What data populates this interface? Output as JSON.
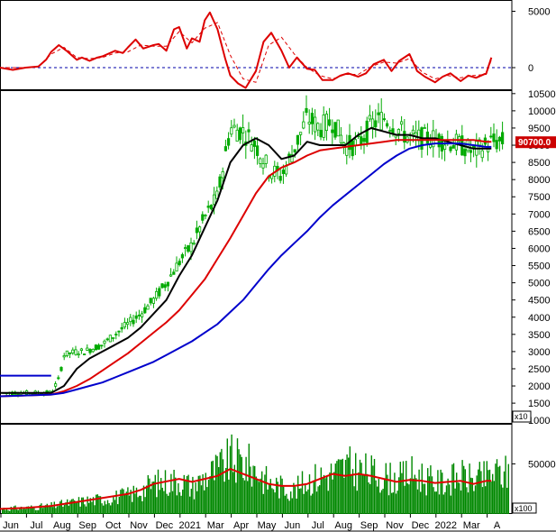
{
  "chart_data": [
    {
      "type": "line",
      "panel": "oscillator",
      "ylim": [
        -2000,
        6000
      ],
      "yticks": [
        "5000",
        "0"
      ],
      "zero_line": true,
      "colors": {
        "line": "#dd0000",
        "signal": "#dd0000",
        "zero": "#0000aa"
      },
      "series": [
        {
          "style": "solid",
          "x": [
            0,
            0.5,
            1,
            1.5,
            1.8,
            2,
            2.3,
            2.6,
            3,
            3.2,
            3.5,
            3.8,
            4,
            4.3,
            4.5,
            4.8,
            5,
            5.3,
            5.6,
            6,
            6.2,
            6.5,
            6.8,
            7,
            7.3,
            7.5,
            7.8,
            8,
            8.2,
            8.5,
            8.8,
            9,
            9.3,
            9.6,
            10,
            10.3,
            10.6,
            11,
            11.3,
            11.6,
            12,
            12.3,
            12.6,
            13,
            13.3,
            13.6,
            14,
            14.3,
            14.6,
            15,
            15.3,
            15.6,
            16,
            16.3,
            16.6,
            17,
            17.3,
            17.6,
            18,
            18.3,
            18.6,
            19,
            19.2
          ],
          "y": [
            0,
            -200,
            0,
            100,
            700,
            1400,
            2000,
            1500,
            700,
            900,
            600,
            900,
            1000,
            1300,
            1500,
            1300,
            1800,
            2500,
            1700,
            2000,
            2100,
            1500,
            3400,
            3600,
            1700,
            2600,
            2300,
            4200,
            4900,
            3400,
            800,
            -700,
            -1400,
            -1800,
            -300,
            2300,
            3100,
            1500,
            0,
            900,
            -100,
            -200,
            -1100,
            -1100,
            -700,
            -500,
            -800,
            -500,
            300,
            700,
            -300,
            600,
            1200,
            -300,
            -800,
            -1300,
            -800,
            -500,
            -1200,
            -700,
            -900,
            -500,
            900
          ]
        },
        {
          "style": "dashed",
          "x": [
            0,
            1,
            1.5,
            2,
            2.5,
            3,
            3.5,
            4,
            4.5,
            5,
            5.5,
            6,
            6.5,
            7,
            7.5,
            8,
            8.5,
            9,
            9.5,
            10,
            10.5,
            11,
            11.5,
            12,
            12.5,
            13,
            13.5,
            14,
            14.5,
            15,
            15.5,
            16,
            16.5,
            17,
            17.5,
            18,
            18.5,
            19,
            19.2
          ],
          "y": [
            0,
            0,
            100,
            1200,
            1800,
            900,
            800,
            900,
            1300,
            1400,
            2000,
            1900,
            1900,
            3200,
            2200,
            3500,
            4000,
            1100,
            -1000,
            -1300,
            2000,
            2700,
            1200,
            0,
            -700,
            -1000,
            -600,
            -600,
            100,
            500,
            400,
            800,
            -400,
            -1000,
            -700,
            -900,
            -700,
            -600,
            700
          ]
        }
      ]
    },
    {
      "type": "candlestick",
      "panel": "price",
      "ylim": [
        900,
        10600
      ],
      "yticks": [
        "10500",
        "10000",
        "9500",
        "9000",
        "8500",
        "8000",
        "7500",
        "7000",
        "6500",
        "6000",
        "5500",
        "5000",
        "4500",
        "4000",
        "3500",
        "3000",
        "2500",
        "2000",
        "1500",
        "1000"
      ],
      "multiplier": "x10",
      "last_price": "90700.0",
      "colors": {
        "up": "#00aa00",
        "down": "#00aa00",
        "ma_short": "#000000",
        "ma_mid": "#dd0000",
        "ma_long": "#0000cc",
        "price_tag": "#cc0000"
      },
      "price_path": {
        "x": [
          0,
          2,
          2.3,
          2.5,
          3,
          3.3,
          4,
          4.5,
          5,
          5.5,
          6,
          6.5,
          7,
          7.5,
          8,
          8.5,
          9,
          9.5,
          10,
          10.5,
          11,
          11.5,
          12,
          12.5,
          13,
          13.5,
          14,
          14.5,
          15,
          15.5,
          16,
          16.5,
          17,
          17.5,
          18,
          18.5,
          19,
          19.2
        ],
        "y": [
          1800,
          1800,
          2200,
          2900,
          3000,
          3000,
          3200,
          3500,
          3800,
          4100,
          4500,
          5000,
          5600,
          6100,
          6900,
          7500,
          9500,
          9400,
          9000,
          8300,
          8100,
          8900,
          9800,
          9500,
          9700,
          9000,
          9000,
          9600,
          9800,
          9500,
          9200,
          9200,
          9200,
          9100,
          9000,
          8800,
          9000,
          9100
        ]
      },
      "series": [
        {
          "name": "",
          "line": "ma_short",
          "x": [
            0,
            2,
            2.5,
            3,
            3.5,
            4,
            4.5,
            5,
            5.5,
            6,
            6.5,
            7,
            7.5,
            8,
            8.5,
            9,
            9.5,
            10,
            10.5,
            11,
            11.5,
            12,
            12.5,
            13,
            13.5,
            14,
            14.5,
            15,
            15.5,
            16,
            16.5,
            17,
            17.5,
            18,
            18.5,
            19,
            19.2
          ],
          "y": [
            1800,
            1800,
            2000,
            2500,
            2800,
            3000,
            3200,
            3400,
            3700,
            4100,
            4500,
            5200,
            5800,
            6600,
            7400,
            8500,
            9000,
            9200,
            9000,
            8600,
            8700,
            9100,
            9000,
            9000,
            9000,
            9300,
            9500,
            9400,
            9300,
            9300,
            9200,
            9200,
            9100,
            9000,
            8900,
            8900,
            8900
          ]
        },
        {
          "name": "",
          "line": "ma_mid",
          "x": [
            0,
            2,
            2.5,
            3,
            3.5,
            4,
            4.5,
            5,
            5.5,
            6,
            6.5,
            7,
            7.5,
            8,
            8.5,
            9,
            9.5,
            10,
            10.5,
            11,
            11.5,
            12,
            12.5,
            13,
            13.5,
            14,
            14.5,
            15,
            15.5,
            16,
            16.5,
            17,
            17.5,
            18,
            18.5,
            19,
            19.2
          ],
          "y": [
            1700,
            1750,
            1850,
            2000,
            2200,
            2450,
            2700,
            2950,
            3250,
            3550,
            3850,
            4200,
            4650,
            5100,
            5700,
            6300,
            6950,
            7600,
            8100,
            8350,
            8500,
            8700,
            8850,
            8900,
            8950,
            9000,
            9050,
            9100,
            9150,
            9150,
            9150,
            9150,
            9150,
            9150,
            9150,
            9100,
            9100
          ]
        },
        {
          "name": "",
          "line": "ma_long",
          "x": [
            0,
            2,
            2.5,
            3,
            3.5,
            4,
            4.5,
            5,
            5.5,
            6,
            6.5,
            7,
            7.5,
            8,
            8.5,
            9,
            9.5,
            10,
            10.5,
            11,
            11.5,
            12,
            12.5,
            13,
            13.5,
            14,
            14.5,
            15,
            15.5,
            16,
            16.5,
            17,
            17.5,
            18,
            18.5,
            19,
            19.2
          ],
          "y": [
            1700,
            1750,
            1800,
            1900,
            2000,
            2100,
            2250,
            2400,
            2550,
            2700,
            2900,
            3100,
            3300,
            3550,
            3800,
            4150,
            4500,
            4950,
            5400,
            5800,
            6150,
            6500,
            6900,
            7250,
            7550,
            7850,
            8150,
            8450,
            8700,
            8900,
            9000,
            9050,
            9050,
            9050,
            9000,
            8950,
            8950
          ]
        },
        {
          "name": "",
          "line": "ma_long",
          "x": [
            0,
            2
          ],
          "y": [
            2300,
            2300
          ]
        }
      ]
    },
    {
      "type": "bar",
      "panel": "volume",
      "ylim": [
        0,
        90000
      ],
      "yticks": [
        "50000"
      ],
      "multiplier": "x100",
      "colors": {
        "bar": "#008800",
        "ma": "#dd0000"
      },
      "volume_envelope": {
        "x": [
          0,
          1,
          2,
          2.5,
          3,
          4,
          5,
          5.5,
          6,
          7,
          7.5,
          8,
          8.5,
          9,
          9.5,
          10,
          10.5,
          11,
          11.5,
          12,
          12.5,
          13,
          13.5,
          14,
          14.5,
          15,
          15.5,
          16,
          16.5,
          17,
          17.5,
          18,
          18.5,
          19,
          19.2
        ],
        "y": [
          8000,
          9000,
          12000,
          15000,
          18000,
          22000,
          28000,
          35000,
          45000,
          50000,
          40000,
          55000,
          65000,
          80000,
          75000,
          65000,
          45000,
          40000,
          35000,
          50000,
          55000,
          60000,
          70000,
          65000,
          60000,
          55000,
          50000,
          60000,
          55000,
          45000,
          50000,
          55000,
          50000,
          55000,
          60000
        ]
      },
      "series": [
        {
          "name": "",
          "line": "ma",
          "x": [
            0,
            1,
            2,
            2.5,
            3,
            4,
            5,
            5.5,
            6,
            7,
            7.5,
            8,
            8.5,
            9,
            9.5,
            10,
            10.5,
            11,
            11.5,
            12,
            12.5,
            13,
            13.5,
            14,
            14.5,
            15,
            15.5,
            16,
            16.5,
            17,
            17.5,
            18,
            18.5,
            19,
            19.2
          ],
          "y": [
            5000,
            6000,
            8000,
            10000,
            12000,
            16000,
            20000,
            24000,
            30000,
            35000,
            32000,
            35000,
            38000,
            45000,
            40000,
            35000,
            30000,
            28000,
            28000,
            30000,
            35000,
            40000,
            38000,
            40000,
            38000,
            35000,
            32000,
            34000,
            33000,
            31000,
            32000,
            33000,
            30000,
            33000,
            33000
          ]
        }
      ]
    },
    {
      "type": "axis",
      "panel": "time",
      "xlim": [
        0,
        20
      ],
      "xticks": [
        {
          "x": 0,
          "label": "Jun"
        },
        {
          "x": 1,
          "label": "Jul"
        },
        {
          "x": 2,
          "label": "Aug"
        },
        {
          "x": 3,
          "label": "Sep"
        },
        {
          "x": 4,
          "label": "Oct"
        },
        {
          "x": 5,
          "label": "Nov"
        },
        {
          "x": 6,
          "label": "Dec"
        },
        {
          "x": 7,
          "label": "2021"
        },
        {
          "x": 8,
          "label": "Mar"
        },
        {
          "x": 9,
          "label": "Apr"
        },
        {
          "x": 10,
          "label": "May"
        },
        {
          "x": 11,
          "label": "Jun"
        },
        {
          "x": 12,
          "label": "Jul"
        },
        {
          "x": 13,
          "label": "Aug"
        },
        {
          "x": 14,
          "label": "Sep"
        },
        {
          "x": 15,
          "label": "Nov"
        },
        {
          "x": 16,
          "label": "Dec"
        },
        {
          "x": 17,
          "label": "2022"
        },
        {
          "x": 18,
          "label": "Mar"
        },
        {
          "x": 19,
          "label": "A"
        }
      ]
    }
  ]
}
